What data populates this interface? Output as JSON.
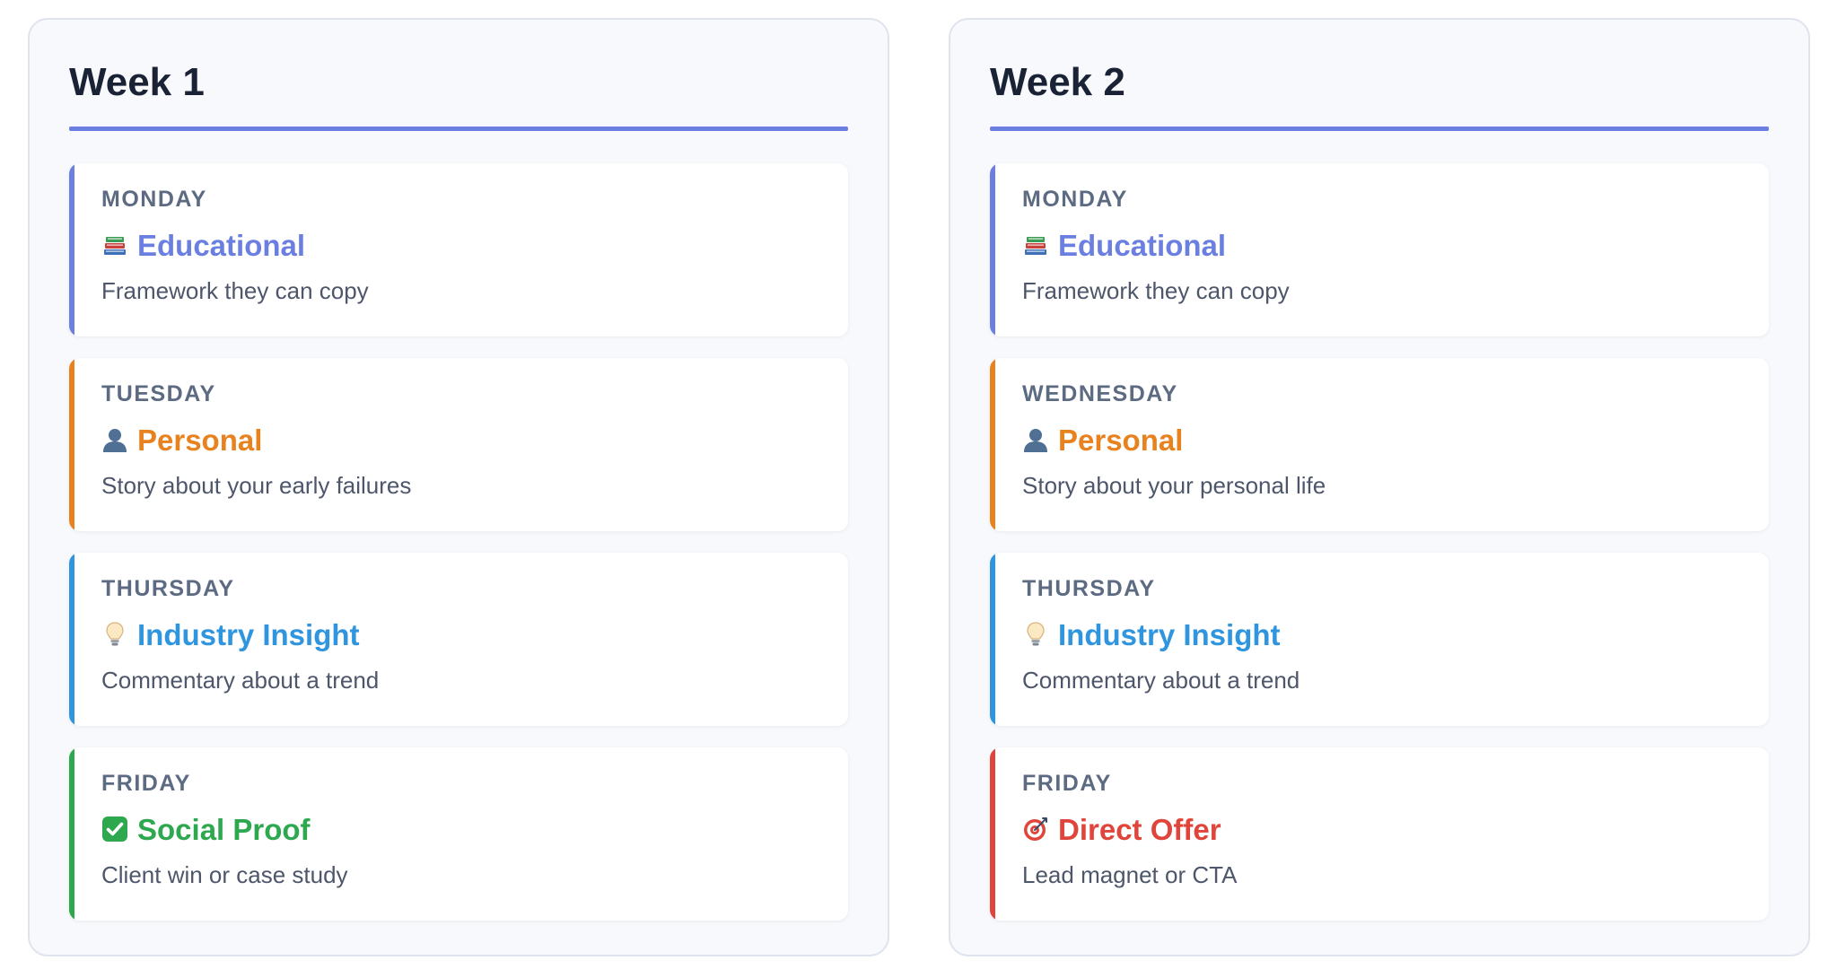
{
  "colors": {
    "educational": "#6b7fe0",
    "personal": "#e8821f",
    "insight": "#2f95de",
    "social_proof": "#2ea84f",
    "direct_offer": "#e0453b"
  },
  "weeks": [
    {
      "title": "Week 1",
      "days": [
        {
          "day": "MONDAY",
          "icon": "books-icon",
          "type": "Educational",
          "description": "Framework they can copy"
        },
        {
          "day": "TUESDAY",
          "icon": "person-silhouette-icon",
          "type": "Personal",
          "description": "Story about your early failures"
        },
        {
          "day": "THURSDAY",
          "icon": "light-bulb-icon",
          "type": "Industry Insight",
          "description": "Commentary about a trend"
        },
        {
          "day": "FRIDAY",
          "icon": "check-mark-icon",
          "type": "Social Proof",
          "description": "Client win or case study"
        }
      ]
    },
    {
      "title": "Week 2",
      "days": [
        {
          "day": "MONDAY",
          "icon": "books-icon",
          "type": "Educational",
          "description": "Framework they can copy"
        },
        {
          "day": "WEDNESDAY",
          "icon": "person-silhouette-icon",
          "type": "Personal",
          "description": "Story about your personal life"
        },
        {
          "day": "THURSDAY",
          "icon": "light-bulb-icon",
          "type": "Industry Insight",
          "description": "Commentary about a trend"
        },
        {
          "day": "FRIDAY",
          "icon": "target-icon",
          "type": "Direct Offer",
          "description": "Lead magnet or CTA"
        }
      ]
    }
  ]
}
